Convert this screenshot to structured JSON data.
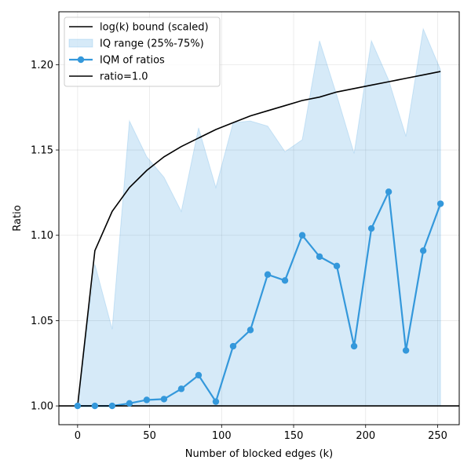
{
  "chart_data": {
    "type": "line",
    "xlabel": "Number of blocked edges (k)",
    "ylabel": "Ratio",
    "xlim": [
      -13,
      265
    ],
    "ylim": [
      0.989,
      1.231
    ],
    "xticks": [
      0,
      50,
      100,
      150,
      200,
      250
    ],
    "yticks": [
      1.0,
      1.05,
      1.1,
      1.15,
      1.2
    ],
    "xtick_labels": [
      "0",
      "50",
      "100",
      "150",
      "200",
      "250"
    ],
    "ytick_labels": [
      "1.00",
      "1.05",
      "1.10",
      "1.15",
      "1.20"
    ],
    "grid": true,
    "legend_position": "upper-left",
    "x": [
      0,
      12,
      24,
      36,
      48,
      60,
      72,
      84,
      96,
      108,
      120,
      132,
      144,
      156,
      168,
      180,
      192,
      204,
      216,
      228,
      240,
      252
    ],
    "series": [
      {
        "name": "log(k) bound (scaled)",
        "kind": "line",
        "color": "#000000",
        "values": [
          1.0,
          1.091,
          1.114,
          1.128,
          1.138,
          1.146,
          1.152,
          1.157,
          1.162,
          1.166,
          1.17,
          1.173,
          1.176,
          1.179,
          1.181,
          1.184,
          1.186,
          1.188,
          1.19,
          1.192,
          1.194,
          1.196
        ]
      },
      {
        "name": "IQ range (25%-75%)",
        "kind": "band",
        "color": "#3498db",
        "lower": [
          1.0,
          1.0,
          1.0,
          1.0,
          1.0,
          1.0,
          1.0,
          1.0,
          1.0,
          1.0,
          1.0,
          1.0,
          1.0,
          1.0,
          1.0,
          1.0,
          1.0,
          1.0,
          1.0,
          1.0,
          1.0,
          1.0
        ],
        "upper": [
          1.0,
          1.083,
          1.045,
          1.167,
          1.146,
          1.134,
          1.114,
          1.163,
          1.128,
          1.166,
          1.167,
          1.164,
          1.149,
          1.156,
          1.214,
          1.182,
          1.148,
          1.214,
          1.191,
          1.158,
          1.221,
          1.197
        ]
      },
      {
        "name": "IQM of ratios",
        "kind": "line-markers",
        "color": "#3498db",
        "values": [
          1.0,
          1.0,
          1.0,
          1.0015,
          1.0035,
          1.004,
          1.01,
          1.018,
          1.0025,
          1.035,
          1.0445,
          1.077,
          1.0735,
          1.1,
          1.0875,
          1.082,
          1.035,
          1.104,
          1.1255,
          1.0325,
          1.091,
          1.1185
        ]
      },
      {
        "name": "ratio=1.0",
        "kind": "hline",
        "color": "#000000",
        "y": 1.0
      }
    ]
  }
}
